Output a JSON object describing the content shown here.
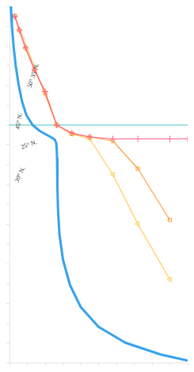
{
  "chart_data": {
    "type": "line",
    "xlim": [
      0,
      10
    ],
    "ylim": [
      0,
      18
    ],
    "xticks": [
      0,
      1,
      2,
      3,
      4,
      5,
      6,
      7,
      8,
      9,
      10
    ],
    "yticks": [
      0,
      1,
      2,
      3,
      4,
      5,
      6,
      7,
      8,
      9,
      10,
      11,
      12,
      13,
      14,
      15,
      16,
      17,
      18
    ],
    "grid": false,
    "tick_labels": false,
    "hline": 12.0,
    "series": [
      {
        "x": [
          0.08,
          0.1,
          0.13,
          0.18,
          0.25,
          0.35,
          0.5,
          0.7,
          0.95,
          1.3,
          1.7,
          2.1,
          2.4,
          2.55,
          2.62,
          2.65,
          2.67,
          2.68,
          2.7,
          2.72,
          2.8,
          3.0,
          3.4,
          4.0,
          5.0,
          6.5,
          8.5,
          10.0
        ],
        "values": [
          18.0,
          17.6,
          17.1,
          16.5,
          15.8,
          15.0,
          14.1,
          13.2,
          12.5,
          12.0,
          11.7,
          11.5,
          11.35,
          11.25,
          11.1,
          10.8,
          10.3,
          9.6,
          8.8,
          7.8,
          6.5,
          5.2,
          3.9,
          2.8,
          1.8,
          1.0,
          0.4,
          0.1
        ],
        "marker": "none",
        "line_style": "bold"
      },
      {
        "x": [
          0.3,
          0.55,
          0.9,
          1.4,
          2.0,
          2.65,
          3.5,
          4.5,
          5.8,
          7.2,
          9.0,
          10.0
        ],
        "values": [
          17.5,
          16.8,
          15.9,
          14.8,
          13.7,
          12.0,
          11.6,
          11.4,
          11.3,
          11.3,
          11.3,
          11.3
        ],
        "marker": "plus",
        "line_style": "solid"
      },
      {
        "x": [
          0.3,
          0.55,
          0.9,
          1.4,
          2.0,
          2.65,
          3.5,
          4.5,
          5.8,
          7.2,
          9.0
        ],
        "values": [
          17.5,
          16.8,
          15.9,
          14.8,
          13.6,
          12.0,
          11.55,
          11.4,
          11.2,
          9.8,
          7.2
        ],
        "marker": "square",
        "line_style": "solid"
      },
      {
        "x": [
          0.3,
          2.65,
          3.5,
          4.5,
          5.8,
          7.2,
          9.0
        ],
        "values": [
          17.5,
          12.0,
          11.55,
          11.3,
          9.5,
          7.0,
          4.2
        ],
        "marker": "triangle_left",
        "line_style": "solid"
      }
    ],
    "annotations": [
      {
        "text": "50° 35' N.",
        "x": 1.35,
        "y": 14.5
      },
      {
        "text": "45° N.",
        "x": 0.55,
        "y": 12.2
      },
      {
        "text": "25° N.",
        "x": 1.1,
        "y": 11.0
      },
      {
        "text": "30° N.",
        "x": 0.6,
        "y": 9.5
      }
    ]
  }
}
